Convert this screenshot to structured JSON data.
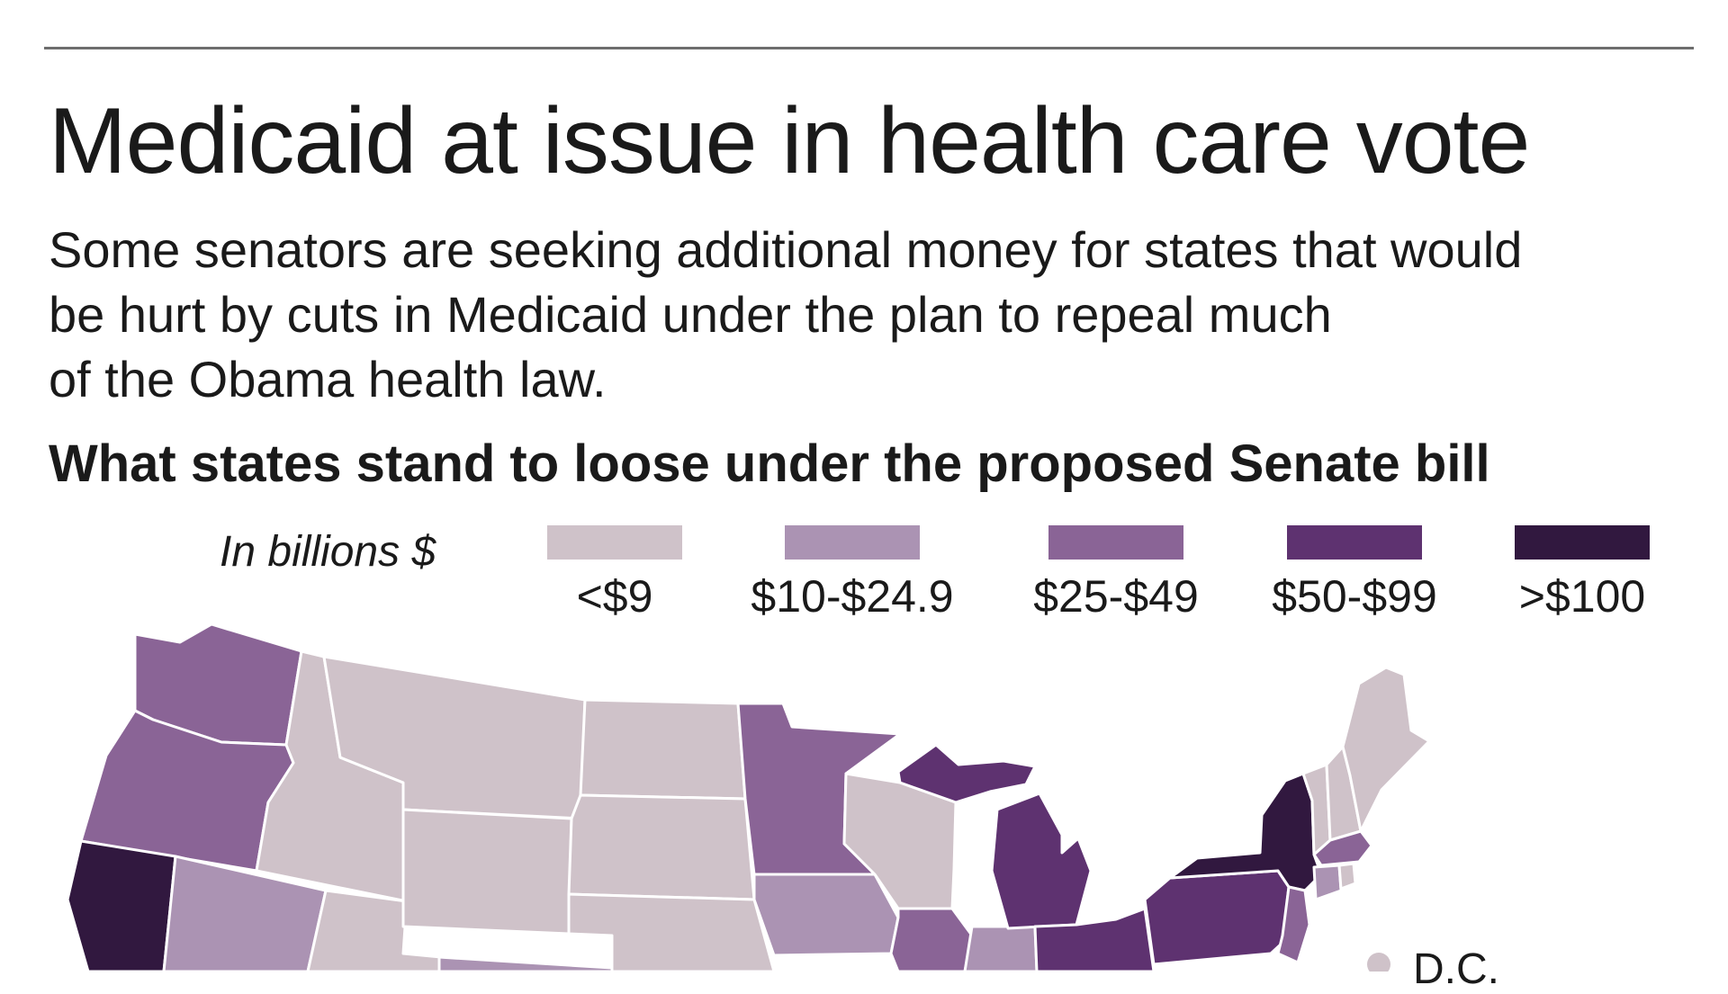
{
  "title": "Medicaid at issue in health care vote",
  "subtitle_lines": [
    "Some senators are seeking additional money for states that would",
    "be hurt by cuts in Medicaid under the plan to repeal much",
    "of the Obama health law."
  ],
  "chart_heading": "What states stand to loose under the proposed Senate bill",
  "legend": {
    "units": "In billions $",
    "bins": [
      {
        "label": "<$9",
        "color": "#cfc2c9"
      },
      {
        "label": "$10-$24.9",
        "color": "#ab93b3"
      },
      {
        "label": "$25-$49",
        "color": "#8a6496"
      },
      {
        "label": "$50-$99",
        "color": "#5e3270"
      },
      {
        "label": ">$100",
        "color": "#31183f"
      }
    ]
  },
  "dc_label": "D.C.",
  "states": [
    {
      "name": "Washington",
      "bin": 2
    },
    {
      "name": "Oregon",
      "bin": 2
    },
    {
      "name": "California",
      "bin": 4
    },
    {
      "name": "Idaho",
      "bin": 0
    },
    {
      "name": "Nevada",
      "bin": 1
    },
    {
      "name": "Montana",
      "bin": 0
    },
    {
      "name": "Wyoming",
      "bin": 0
    },
    {
      "name": "Utah",
      "bin": 0
    },
    {
      "name": "Colorado",
      "bin": 1
    },
    {
      "name": "North Dakota",
      "bin": 0
    },
    {
      "name": "South Dakota",
      "bin": 0
    },
    {
      "name": "Nebraska",
      "bin": 0
    },
    {
      "name": "Minnesota",
      "bin": 2
    },
    {
      "name": "Iowa",
      "bin": 1
    },
    {
      "name": "Wisconsin",
      "bin": 0
    },
    {
      "name": "Illinois",
      "bin": 2
    },
    {
      "name": "Indiana",
      "bin": 1
    },
    {
      "name": "Michigan",
      "bin": 3
    },
    {
      "name": "Ohio",
      "bin": 3
    },
    {
      "name": "Pennsylvania",
      "bin": 3
    },
    {
      "name": "New York",
      "bin": 4
    },
    {
      "name": "Vermont",
      "bin": 0
    },
    {
      "name": "New Hampshire",
      "bin": 0
    },
    {
      "name": "Maine",
      "bin": 0
    },
    {
      "name": "Massachusetts",
      "bin": 2
    },
    {
      "name": "Connecticut",
      "bin": 1
    },
    {
      "name": "Rhode Island",
      "bin": 0
    },
    {
      "name": "New Jersey",
      "bin": 2
    },
    {
      "name": "District of Columbia",
      "bin": 0
    }
  ]
}
